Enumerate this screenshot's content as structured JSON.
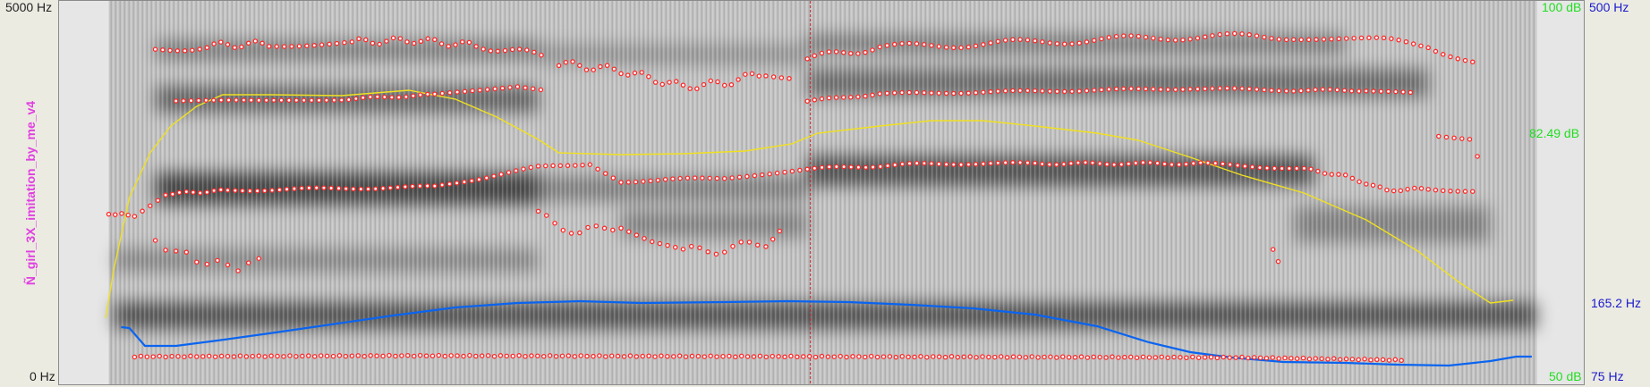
{
  "file_name": "Ñ_girl_3X_imitation_by_me_v4",
  "frequency_axis": {
    "top": "5000 Hz",
    "bottom": "0 Hz"
  },
  "intensity_axis": {
    "top": "100 dB",
    "middle": "82.49 dB",
    "bottom": "50 dB"
  },
  "pitch_axis": {
    "top": "500 Hz",
    "middle": "165.2 Hz",
    "bottom": "75 Hz"
  },
  "colors": {
    "formants": "#ff2a2a",
    "intensity_curve": "#f0e020",
    "pitch_curve": "#0a64f0",
    "cursor": "#c81e1e",
    "title": "#e040e0"
  },
  "icons": [
    "spectrogram",
    "cursor-line"
  ]
}
